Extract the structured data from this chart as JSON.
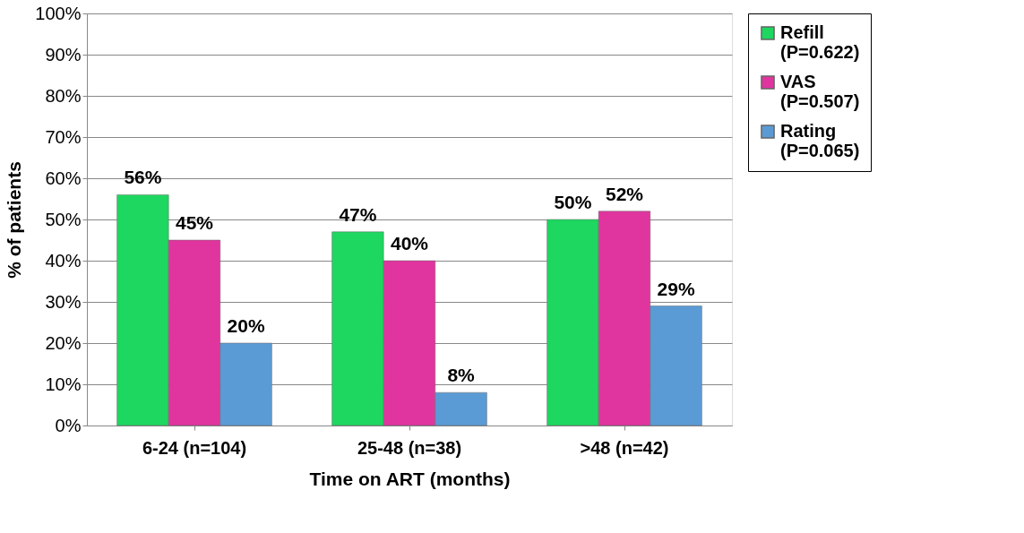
{
  "chart_data": {
    "type": "bar",
    "xlabel": "Time on ART (months)",
    "ylabel": "% of patients",
    "categories": [
      "6-24 (n=104)",
      "25-48 (n=38)",
      ">48 (n=42)"
    ],
    "series": [
      {
        "name": "Refill (P=0.622)",
        "color": "#1ed760",
        "values": [
          56,
          47,
          50
        ],
        "value_labels": [
          "56%",
          "47%",
          "50%"
        ]
      },
      {
        "name": "VAS (P=0.507)",
        "color": "#e0359e",
        "values": [
          45,
          40,
          52
        ],
        "value_labels": [
          "45%",
          "40%",
          "52%"
        ]
      },
      {
        "name": "Rating (P=0.065)",
        "color": "#5b9bd5",
        "values": [
          20,
          8,
          29
        ],
        "value_labels": [
          "20%",
          "8%",
          "29%"
        ]
      }
    ],
    "ylim": [
      0,
      100
    ],
    "yticks": [
      {
        "value": 0,
        "label": "0%"
      },
      {
        "value": 10,
        "label": "10%"
      },
      {
        "value": 20,
        "label": "20%"
      },
      {
        "value": 30,
        "label": "30%"
      },
      {
        "value": 40,
        "label": "40%"
      },
      {
        "value": 50,
        "label": "50%"
      },
      {
        "value": 60,
        "label": "60%"
      },
      {
        "value": 70,
        "label": "70%"
      },
      {
        "value": 80,
        "label": "80%"
      },
      {
        "value": 90,
        "label": "90%"
      },
      {
        "value": 100,
        "label": "100%"
      }
    ],
    "grid": "y",
    "legend": "right"
  }
}
